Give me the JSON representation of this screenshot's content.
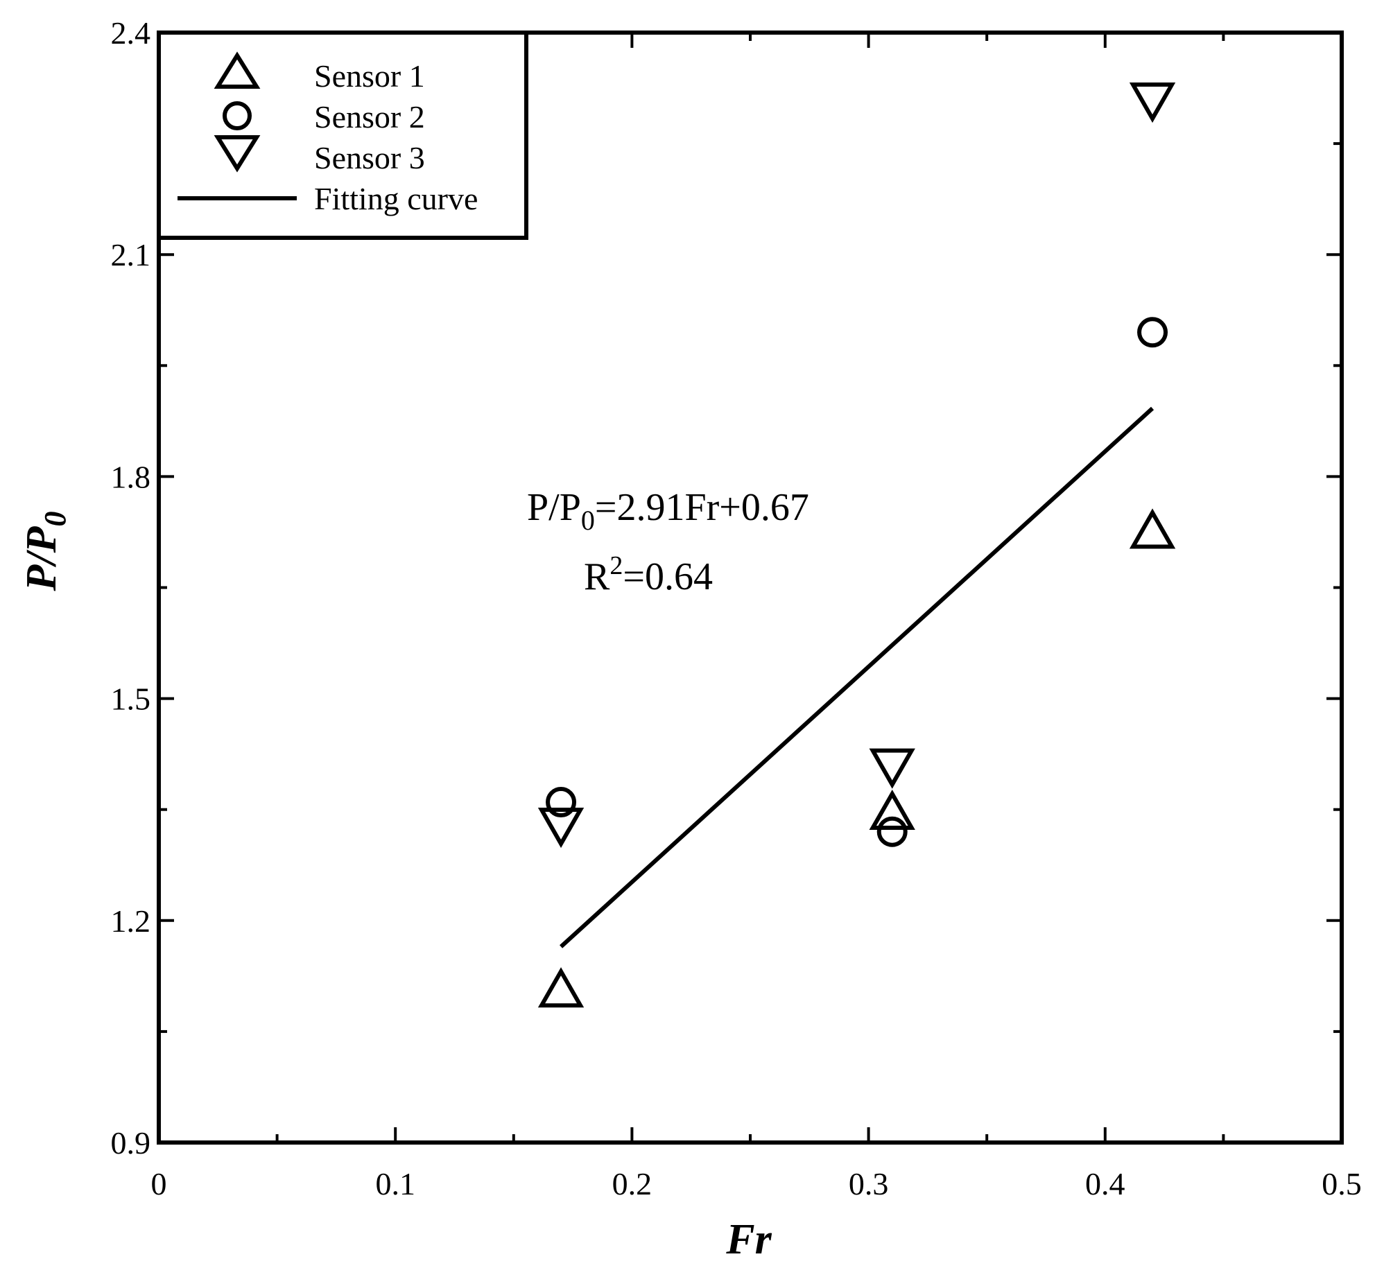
{
  "chart_data": {
    "type": "scatter",
    "xlabel": "Fr",
    "ylabel_main": "P/P",
    "ylabel_sub": "0",
    "xlim": [
      0,
      0.5
    ],
    "ylim": [
      0.9,
      2.4
    ],
    "x_ticks": [
      0,
      0.1,
      0.2,
      0.3,
      0.4,
      0.5
    ],
    "x_tick_labels": [
      "0",
      "0.1",
      "0.2",
      "0.3",
      "0.4",
      "0.5"
    ],
    "y_ticks": [
      0.9,
      1.2,
      1.5,
      1.8,
      2.1,
      2.4
    ],
    "y_tick_labels": [
      "0.9",
      "1.2",
      "1.5",
      "1.8",
      "2.1",
      "2.4"
    ],
    "grid": false,
    "legend_position": "top-left",
    "series": [
      {
        "name": "Sensor 1",
        "marker": "triangle-up",
        "x": [
          0.17,
          0.31,
          0.42
        ],
        "y": [
          1.105,
          1.345,
          1.725
        ]
      },
      {
        "name": "Sensor 2",
        "marker": "circle",
        "x": [
          0.17,
          0.31,
          0.42
        ],
        "y": [
          1.36,
          1.32,
          1.995
        ]
      },
      {
        "name": "Sensor 3",
        "marker": "triangle-down",
        "x": [
          0.17,
          0.31,
          0.42
        ],
        "y": [
          1.33,
          1.41,
          2.31
        ]
      }
    ],
    "fit": {
      "name": "Fitting curve",
      "slope": 2.91,
      "intercept": 0.67,
      "x_range": [
        0.17,
        0.42
      ]
    },
    "annotation": {
      "eq_prefix": "P/P",
      "eq_sub": "0",
      "eq_suffix": "=2.91Fr+0.67",
      "r2_prefix": "R",
      "r2_sup": "2",
      "r2_suffix": "=0.64"
    }
  }
}
